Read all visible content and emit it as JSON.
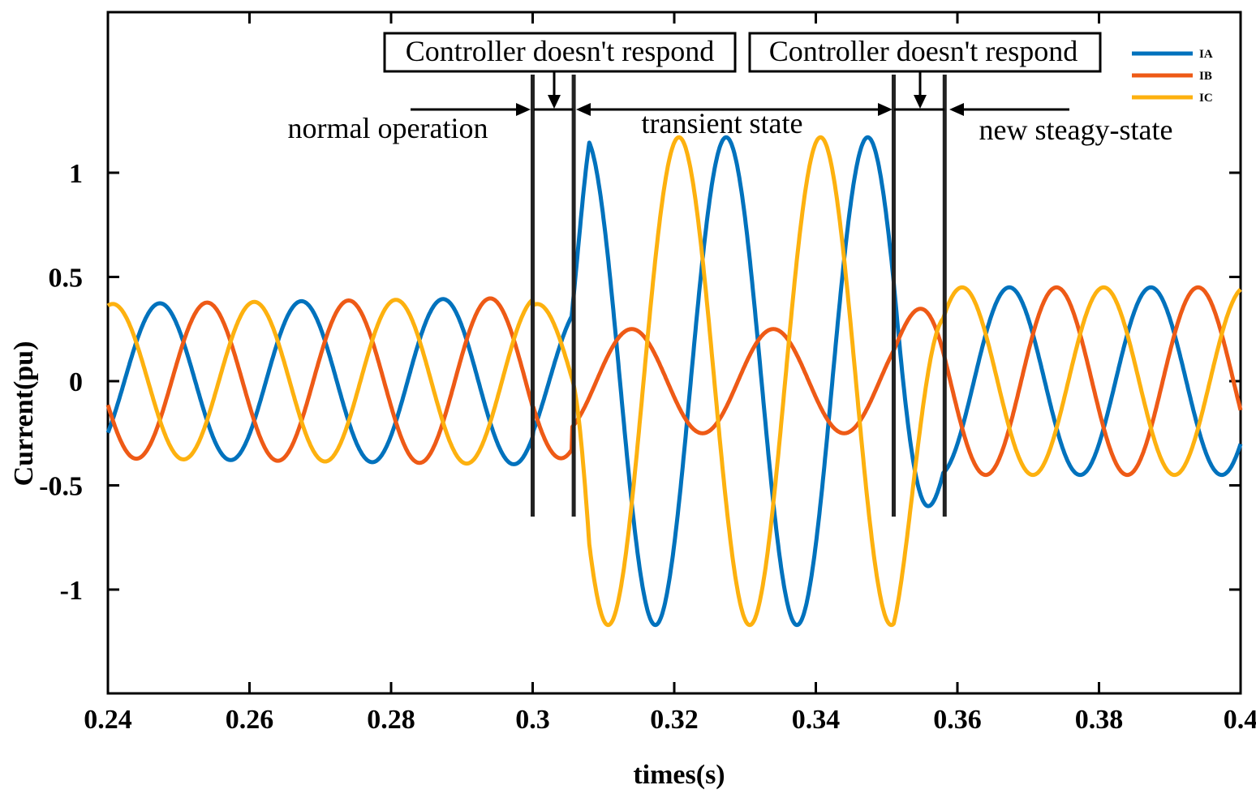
{
  "chart_data": {
    "type": "line",
    "xlabel": "times(s)",
    "ylabel": "Current(pu)",
    "xlim": [
      0.24,
      0.4
    ],
    "ylim": [
      -1.5,
      1.75
    ],
    "x_ticks": [
      0.24,
      0.26,
      0.28,
      0.3,
      0.32,
      0.34,
      0.36,
      0.38,
      0.4
    ],
    "x_tick_labels": [
      "0.24",
      "0.26",
      "0.28",
      "0.3",
      "0.32",
      "0.34",
      "0.36",
      "0.38",
      "0.4"
    ],
    "y_ticks": [
      1,
      0.5,
      0,
      -0.5,
      -1
    ],
    "y_tick_labels": [
      "1",
      "0.5",
      "0",
      "-0.5",
      "-1"
    ],
    "frequency_hz": 50,
    "phases": [
      {
        "t_start": 0.24,
        "t_end": 0.3,
        "amplitude": 0.37
      },
      {
        "t_start": 0.3,
        "t_end": 0.3055,
        "amplitude": 0.37
      },
      {
        "t_start": 0.3055,
        "t_end": 0.351,
        "amplitude": 1.17
      },
      {
        "t_start": 0.351,
        "t_end": 0.358,
        "amplitude": 0.6
      },
      {
        "t_start": 0.358,
        "t_end": 0.4,
        "amplitude": 0.45
      }
    ],
    "series": [
      {
        "name": "IA",
        "color": "#0072BD"
      },
      {
        "name": "IB",
        "color": "#EE5A16"
      },
      {
        "name": "IC",
        "color": "#FDB10F"
      }
    ],
    "legend_position": "top-right",
    "event_lines": [
      0.3,
      0.3058,
      0.351,
      0.3582
    ],
    "annotations": {
      "box1": "Controller doesn't respond",
      "box2": "Controller doesn't respond",
      "normal": "normal operation",
      "transient": "transient state",
      "steady": "new steagy-state"
    }
  }
}
